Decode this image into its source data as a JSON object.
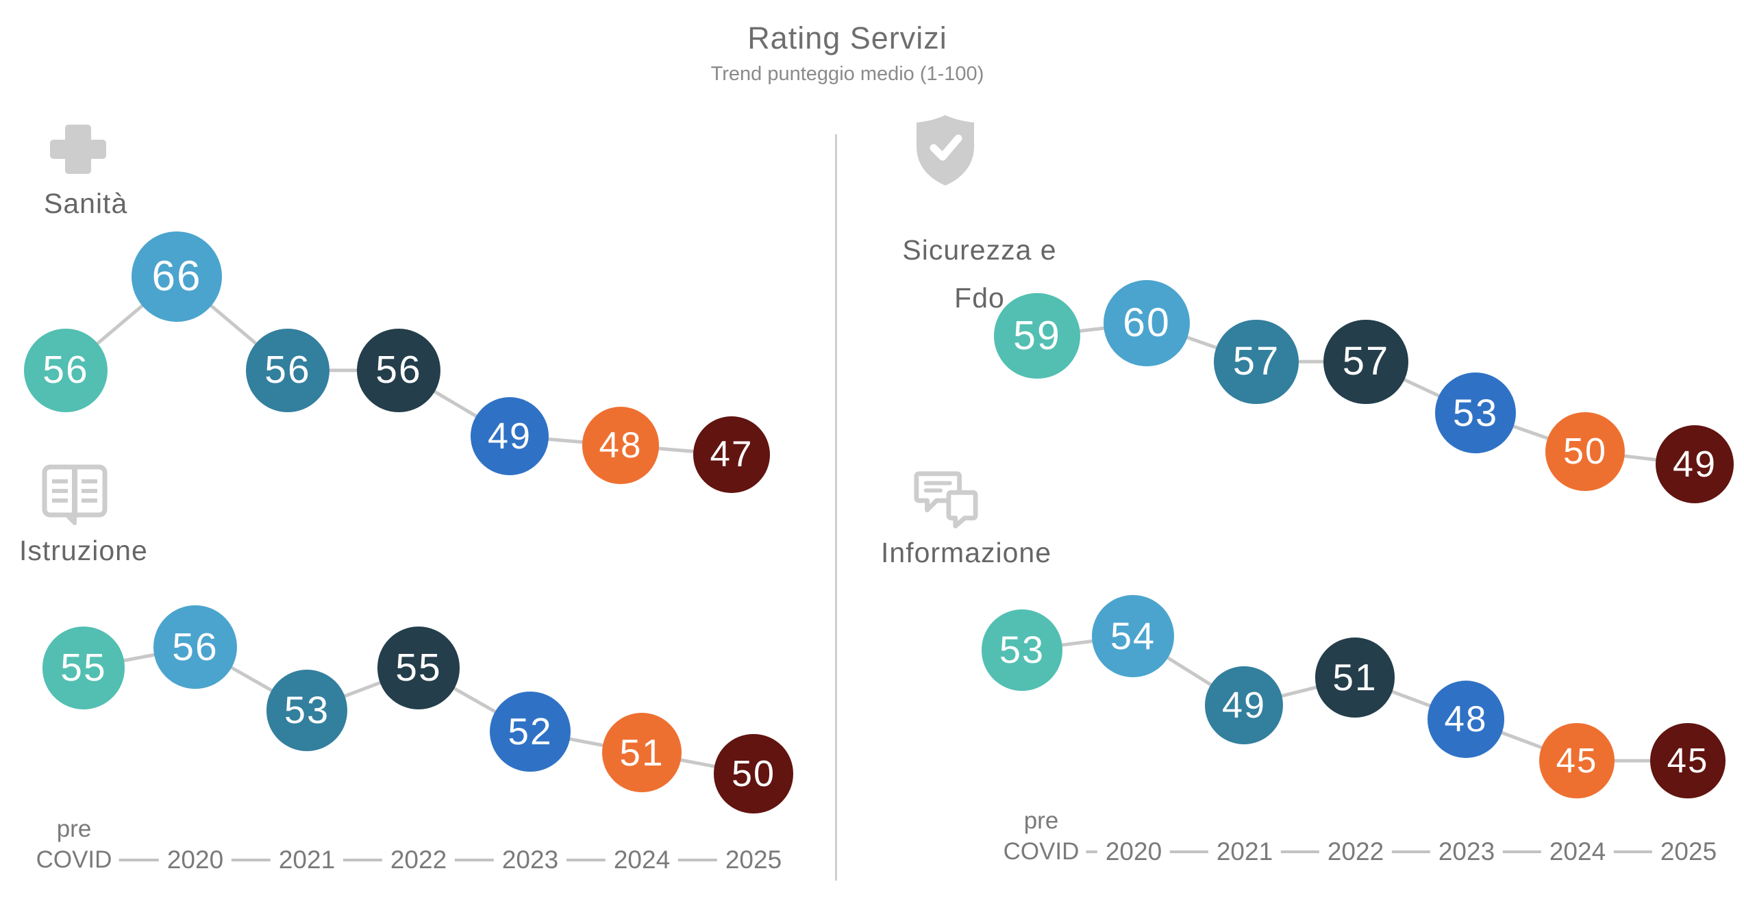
{
  "header": {
    "title": "Rating Servizi",
    "subtitle": "Trend punteggio medio (1-100)"
  },
  "axis": {
    "pre_covid_lines": [
      "pre",
      "COVID"
    ],
    "years": [
      "2020",
      "2021",
      "2022",
      "2023",
      "2024",
      "2025"
    ]
  },
  "palette": {
    "point_colors": [
      "#52bfb2",
      "#4ba4ce",
      "#337f9e",
      "#243e4b",
      "#2f72c5",
      "#ee7031",
      "#611410"
    ],
    "trend_line_color": "#c8c8c8",
    "icon_color": "#cdcdcd",
    "label_color": "#666666",
    "axis_color": "#7a7a7a"
  },
  "chart_data": [
    {
      "type": "line",
      "label": "Sanità",
      "label_lines": [
        "Sanità"
      ],
      "icon": "plus-icon",
      "categories": [
        "pre COVID",
        "2020",
        "2021",
        "2022",
        "2023",
        "2024",
        "2025"
      ],
      "values": [
        56,
        66,
        56,
        56,
        49,
        48,
        47
      ],
      "value_labels_shown": true,
      "ylim": [
        1,
        100
      ]
    },
    {
      "type": "line",
      "label": "Sicurezza e Fdo",
      "label_lines": [
        "Sicurezza e",
        "Fdo"
      ],
      "icon": "shield-check-icon",
      "categories": [
        "pre COVID",
        "2020",
        "2021",
        "2022",
        "2023",
        "2024",
        "2025"
      ],
      "values": [
        59,
        60,
        57,
        57,
        53,
        50,
        49
      ],
      "value_labels_shown": true,
      "ylim": [
        1,
        100
      ]
    },
    {
      "type": "line",
      "label": "Istruzione",
      "label_lines": [
        "Istruzione"
      ],
      "icon": "open-book-icon",
      "categories": [
        "pre COVID",
        "2020",
        "2021",
        "2022",
        "2023",
        "2024",
        "2025"
      ],
      "values": [
        55,
        56,
        53,
        55,
        52,
        51,
        50
      ],
      "value_labels_shown": true,
      "ylim": [
        1,
        100
      ]
    },
    {
      "type": "line",
      "label": "Informazione",
      "label_lines": [
        "Informazione"
      ],
      "icon": "chat-bubbles-icon",
      "categories": [
        "pre COVID",
        "2020",
        "2021",
        "2022",
        "2023",
        "2024",
        "2025"
      ],
      "values": [
        53,
        54,
        49,
        51,
        48,
        45,
        45
      ],
      "value_labels_shown": true,
      "ylim": [
        1,
        100
      ]
    }
  ]
}
